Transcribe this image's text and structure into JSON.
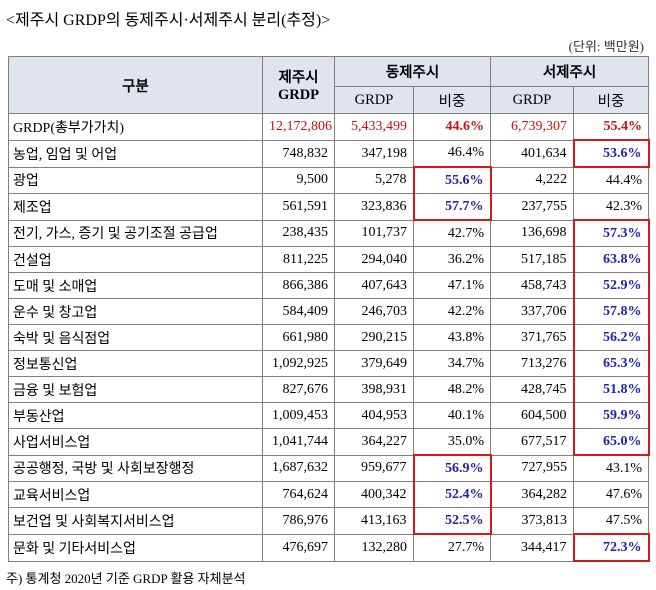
{
  "title": "<제주시 GRDP의 동제주시·서제주시 분리(추정)>",
  "unit": "(단위: 백만원)",
  "table": {
    "header": {
      "category": "구분",
      "jeju": [
        "제주시",
        "GRDP"
      ],
      "east": "동제주시",
      "west": "서제주시",
      "east_sub": [
        "GRDP",
        "비중"
      ],
      "west_sub": [
        "GRDP",
        "비중"
      ]
    },
    "rows": [
      [
        "GRDP(총부가가치)",
        "12,172,806",
        "5,433,499",
        "44.6%",
        "6,739,307",
        "55.4%"
      ],
      [
        "농업, 임업 및 어업",
        "748,832",
        "347,198",
        "46.4%",
        "401,634",
        "53.6%"
      ],
      [
        "광업",
        "9,500",
        "5,278",
        "55.6%",
        "4,222",
        "44.4%"
      ],
      [
        "제조업",
        "561,591",
        "323,836",
        "57.7%",
        "237,755",
        "42.3%"
      ],
      [
        "전기, 가스, 증기 및 공기조절 공급업",
        "238,435",
        "101,737",
        "42.7%",
        "136,698",
        "57.3%"
      ],
      [
        "건설업",
        "811,225",
        "294,040",
        "36.2%",
        "517,185",
        "63.8%"
      ],
      [
        "도매 및 소매업",
        "866,386",
        "407,643",
        "47.1%",
        "458,743",
        "52.9%"
      ],
      [
        "운수 및 창고업",
        "584,409",
        "246,703",
        "42.2%",
        "337,706",
        "57.8%"
      ],
      [
        "숙박 및 음식점업",
        "661,980",
        "290,215",
        "43.8%",
        "371,765",
        "56.2%"
      ],
      [
        "정보통신업",
        "1,092,925",
        "379,649",
        "34.7%",
        "713,276",
        "65.3%"
      ],
      [
        "금융 및 보험업",
        "827,676",
        "398,931",
        "48.2%",
        "428,745",
        "51.8%"
      ],
      [
        "부동산업",
        "1,009,453",
        "404,953",
        "40.1%",
        "604,500",
        "59.9%"
      ],
      [
        "사업서비스업",
        "1,041,744",
        "364,227",
        "35.0%",
        "677,517",
        "65.0%"
      ],
      [
        "공공행정, 국방 및 사회보장행정",
        "1,687,632",
        "959,677",
        "56.9%",
        "727,955",
        "43.1%"
      ],
      [
        "교육서비스업",
        "764,624",
        "400,342",
        "52.4%",
        "364,282",
        "47.6%"
      ],
      [
        "보건업 및 사회복지서비스업",
        "786,976",
        "413,163",
        "52.5%",
        "373,813",
        "47.5%"
      ],
      [
        "문화 및 기타서비스업",
        "476,697",
        "132,280",
        "27.7%",
        "344,417",
        "72.3%"
      ]
    ]
  },
  "note": "주) 통계청 2020년 기준 GRDP 활용 자체분석"
}
